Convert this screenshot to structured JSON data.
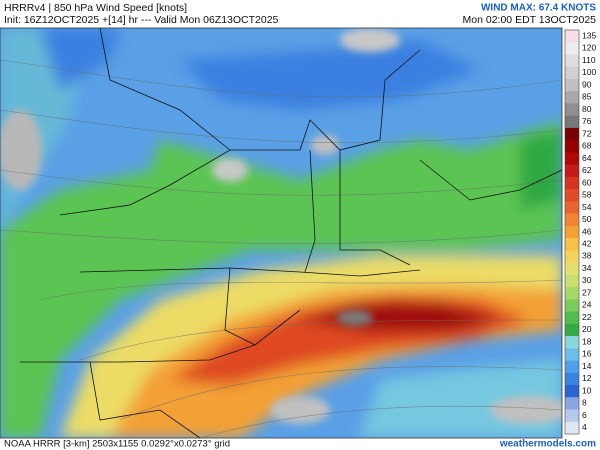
{
  "header": {
    "title": "HRRRv4 | 850 hPa Wind Speed [knots]",
    "subtitle": "Init: 16Z12OCT2025 +[14] hr --- Valid Mon 06Z13OCT2025",
    "wind_max": "WIND MAX: 67.4 KNOTS",
    "local_time": "Mon 02:00 EDT 13OCT2025"
  },
  "colorbar": {
    "levels": [
      135,
      120,
      110,
      100,
      90,
      85,
      80,
      76,
      72,
      68,
      64,
      62,
      60,
      58,
      54,
      50,
      46,
      42,
      38,
      34,
      30,
      27,
      24,
      22,
      20,
      18,
      16,
      14,
      12,
      10,
      8,
      6,
      4
    ],
    "colors": [
      "#f6dde6",
      "#ececec",
      "#dedede",
      "#d0d0d0",
      "#c0c0c0",
      "#a8a8a8",
      "#909090",
      "#787878",
      "#7a0000",
      "#960000",
      "#ae0808",
      "#c41a1a",
      "#d63420",
      "#e04c26",
      "#e8662e",
      "#f08430",
      "#f4a238",
      "#f7c046",
      "#f2d45a",
      "#e2e06c",
      "#c8e070",
      "#a6d868",
      "#7ccc5c",
      "#52bc4e",
      "#34aa42",
      "#8ad6dc",
      "#6abee8",
      "#4ea0e8",
      "#3a82e0",
      "#2c64d2",
      "#8aa6e0",
      "#b6c8ec",
      "#e0e8f4"
    ]
  },
  "footer": {
    "model": "NOAA HRRR [3-km] 2503x1155 0.0292°x0.0273° grid",
    "site": "weathermodels.com"
  }
}
